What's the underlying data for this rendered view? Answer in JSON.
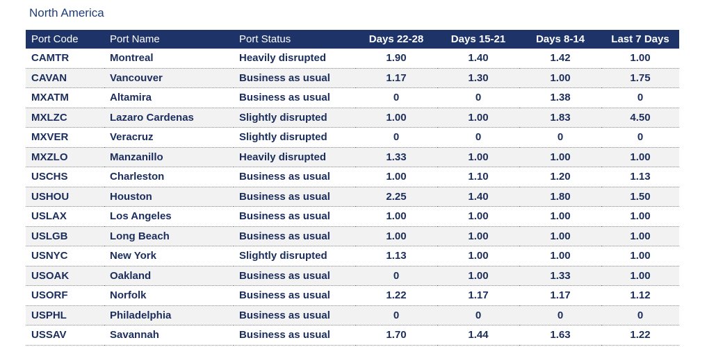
{
  "title": "North America",
  "table": {
    "header": [
      "Port Code",
      "Port Name",
      "Port Status",
      "Days 22-28",
      "Days 15-21",
      "Days 8-14",
      "Last 7 Days"
    ],
    "rows": [
      [
        "CAMTR",
        "Montreal",
        "Heavily disrupted",
        "1.90",
        "1.40",
        "1.42",
        "1.00"
      ],
      [
        "CAVAN",
        "Vancouver",
        "Business as usual",
        "1.17",
        "1.30",
        "1.00",
        "1.75"
      ],
      [
        "MXATM",
        "Altamira",
        "Business as usual",
        "0",
        "0",
        "1.38",
        "0"
      ],
      [
        "MXLZC",
        "Lazaro Cardenas",
        "Slightly disrupted",
        "1.00",
        "1.00",
        "1.83",
        "4.50"
      ],
      [
        "MXVER",
        "Veracruz",
        "Slightly disrupted",
        "0",
        "0",
        "0",
        "0"
      ],
      [
        "MXZLO",
        "Manzanillo",
        "Heavily disrupted",
        "1.33",
        "1.00",
        "1.00",
        "1.00"
      ],
      [
        "USCHS",
        "Charleston",
        "Business as usual",
        "1.00",
        "1.10",
        "1.20",
        "1.13"
      ],
      [
        "USHOU",
        "Houston",
        "Business as usual",
        "2.25",
        "1.40",
        "1.80",
        "1.50"
      ],
      [
        "USLAX",
        "Los Angeles",
        "Business as usual",
        "1.00",
        "1.00",
        "1.00",
        "1.00"
      ],
      [
        "USLGB",
        "Long Beach",
        "Business as usual",
        "1.00",
        "1.00",
        "1.00",
        "1.00"
      ],
      [
        "USNYC",
        "New York",
        "Slightly disrupted",
        "1.13",
        "1.00",
        "1.00",
        "1.00"
      ],
      [
        "USOAK",
        "Oakland",
        "Business as usual",
        "0",
        "1.00",
        "1.33",
        "1.00"
      ],
      [
        "USORF",
        "Norfolk",
        "Business as usual",
        "1.22",
        "1.17",
        "1.17",
        "1.12"
      ],
      [
        "USPHL",
        "Philadelphia",
        "Business as usual",
        "0",
        "0",
        "0",
        "0"
      ],
      [
        "USSAV",
        "Savannah",
        "Business as usual",
        "1.70",
        "1.44",
        "1.63",
        "1.22"
      ]
    ]
  }
}
